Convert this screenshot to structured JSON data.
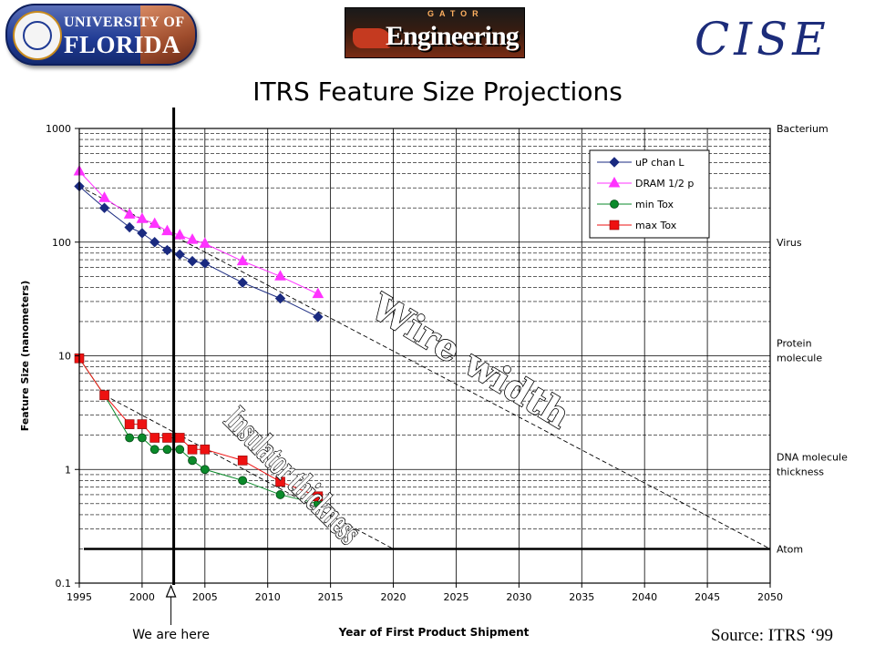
{
  "header": {
    "uf_logo": {
      "line1": "UNIVERSITY OF",
      "line2": "FLORIDA"
    },
    "gator_logo": {
      "small": "GATOR",
      "main": "Engineering"
    },
    "cise_logo": "CISE"
  },
  "chart_data": {
    "type": "scatter",
    "title": "ITRS Feature Size Projections",
    "xlabel": "Year of First Product Shipment",
    "ylabel": "Feature Size (nanometers)",
    "xlim": [
      1995,
      2050
    ],
    "ylim": [
      0.1,
      1000
    ],
    "yscale": "log",
    "grid": true,
    "legend_position": "top-right",
    "x_ticks": [
      "1995",
      "2000",
      "2005",
      "2010",
      "2015",
      "2020",
      "2025",
      "2030",
      "2035",
      "2040",
      "2045",
      "2050"
    ],
    "y_ticks": [
      "1000",
      "100",
      "10",
      "1",
      "0.1"
    ],
    "series": [
      {
        "name": "uP chan L",
        "color": "#1a2a80",
        "marker": "diamond",
        "x": [
          1995,
          1997,
          1999,
          2000,
          2001,
          2002,
          2003,
          2004,
          2005,
          2008,
          2011,
          2014
        ],
        "y": [
          310,
          200,
          135,
          120,
          100,
          85,
          78,
          68,
          65,
          44,
          32,
          22
        ]
      },
      {
        "name": "DRAM 1/2 p",
        "color": "#ff33ff",
        "marker": "triangle",
        "x": [
          1995,
          1997,
          1999,
          2000,
          2001,
          2002,
          2003,
          2004,
          2005,
          2008,
          2011,
          2014
        ],
        "y": [
          420,
          245,
          175,
          160,
          145,
          125,
          115,
          105,
          97,
          68,
          50,
          35
        ]
      },
      {
        "name": "min Tox",
        "color": "#0a8a2a",
        "marker": "circle",
        "x": [
          1995,
          1997,
          1999,
          2000,
          2001,
          2002,
          2003,
          2004,
          2005,
          2008,
          2011,
          2014
        ],
        "y": [
          9.5,
          4.5,
          1.9,
          1.9,
          1.5,
          1.5,
          1.5,
          1.2,
          1.0,
          0.8,
          0.6,
          0.5
        ]
      },
      {
        "name": "max Tox",
        "color": "#ee1111",
        "marker": "square",
        "x": [
          1995,
          1997,
          1999,
          2000,
          2001,
          2002,
          2003,
          2004,
          2005,
          2008,
          2011,
          2014
        ],
        "y": [
          9.5,
          4.5,
          2.5,
          2.5,
          1.9,
          1.9,
          1.9,
          1.5,
          1.5,
          1.2,
          0.78,
          0.58
        ]
      }
    ],
    "trend_lines": [
      {
        "from": [
          1995,
          310
        ],
        "to": [
          2050,
          0.2
        ]
      },
      {
        "from": [
          1997,
          4.5
        ],
        "to": [
          2020,
          0.2
        ]
      }
    ],
    "reference_levels": [
      {
        "value": 1000,
        "label": "Bacterium"
      },
      {
        "value": 100,
        "label": "Virus"
      },
      {
        "value": 10,
        "label": "Protein molecule"
      },
      {
        "value": 1,
        "label": "DNA molecule thickness"
      },
      {
        "value": 0.2,
        "label": "Atom"
      }
    ],
    "annotations": [
      {
        "text": "Wire width"
      },
      {
        "text": "Insulator thickness"
      },
      {
        "text": "We are here",
        "x": 2002.3
      }
    ]
  },
  "footer": {
    "source": "Source: ITRS ‘99"
  }
}
